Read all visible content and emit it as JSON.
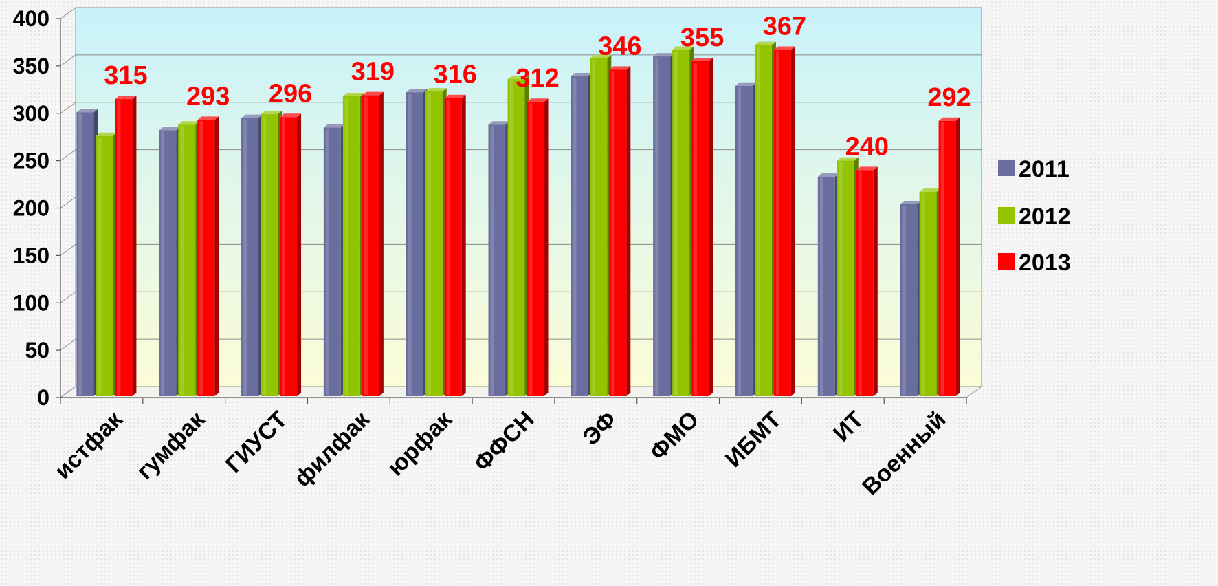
{
  "chart_data": {
    "type": "bar",
    "title": "",
    "xlabel": "",
    "ylabel": "",
    "categories": [
      "истфак",
      "гумфак",
      "ГИУСТ",
      "филфак",
      "юрфак",
      "ФФСН",
      "ЭФ",
      "ФМО",
      "ИБМТ",
      "ИТ",
      "Военный"
    ],
    "series": [
      {
        "name": "2011",
        "color": "#6a6e9f",
        "values": [
          301,
          282,
          295,
          285,
          322,
          288,
          339,
          360,
          329,
          233,
          204
        ]
      },
      {
        "name": "2012",
        "color": "#92c400",
        "values": [
          276,
          288,
          299,
          318,
          323,
          336,
          358,
          367,
          372,
          250,
          217
        ]
      },
      {
        "name": "2013",
        "color": "#ff0000",
        "values": [
          315,
          293,
          296,
          319,
          316,
          312,
          346,
          355,
          367,
          240,
          292
        ]
      }
    ],
    "data_labels": {
      "series": "2013",
      "values": [
        "315",
        "293",
        "296",
        "319",
        "316",
        "312",
        "346",
        "355",
        "367",
        "240",
        "292"
      ],
      "color": "#ff0000"
    },
    "ylim": [
      0,
      400
    ],
    "yticks": [
      0,
      50,
      100,
      150,
      200,
      250,
      300,
      350,
      400
    ],
    "grid": true,
    "legend": {
      "placement": "right",
      "entries": [
        "2011",
        "2012",
        "2013"
      ]
    },
    "background": {
      "top_color": "#c8f2fa",
      "bottom_color": "#fcfcd8"
    }
  }
}
